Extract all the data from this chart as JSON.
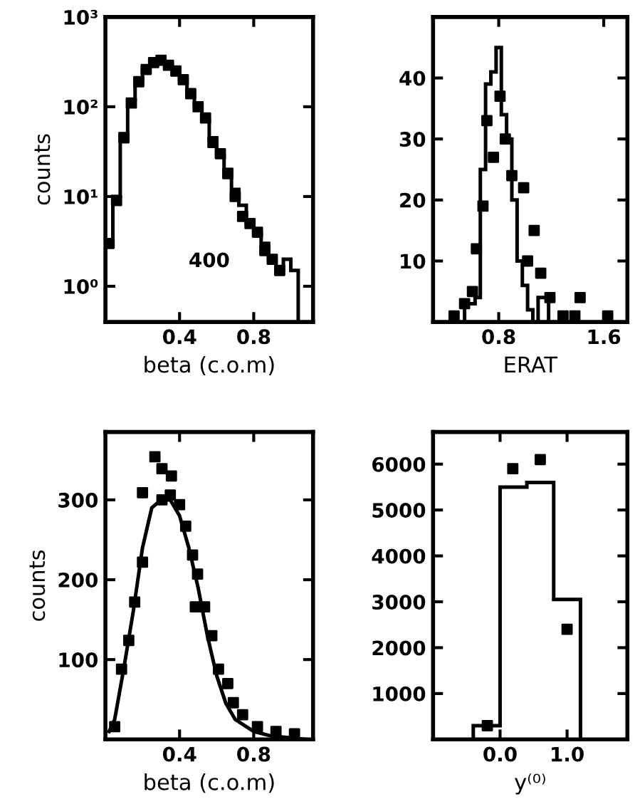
{
  "chart_data": [
    {
      "type": "histogram",
      "xlabel": "beta (c.o.m)",
      "ylabel": "counts",
      "log": "y",
      "xlim": [
        0,
        1.12
      ],
      "ylim": [
        0.4,
        1000
      ],
      "xticks": [
        0.4,
        0.8
      ],
      "yticks": [
        {
          "value": 1,
          "label": "10⁰"
        },
        {
          "value": 10,
          "label": "10¹"
        },
        {
          "value": 100,
          "label": "10²"
        },
        {
          "value": 1000,
          "label": "10³"
        }
      ],
      "annotations": [
        "400"
      ],
      "color": "#000000",
      "bins": [
        0,
        0.04,
        0.08,
        0.12,
        0.16,
        0.2,
        0.24,
        0.28,
        0.32,
        0.36,
        0.4,
        0.44,
        0.48,
        0.52,
        0.56,
        0.6,
        0.64,
        0.68,
        0.72,
        0.76,
        0.8,
        0.84,
        0.88,
        0.92,
        0.96,
        1.0,
        1.04
      ],
      "values": [
        3,
        10,
        50,
        120,
        200,
        270,
        320,
        320,
        300,
        260,
        200,
        150,
        110,
        70,
        45,
        28,
        20,
        12,
        8,
        5,
        4,
        3,
        2,
        1.5,
        2,
        1.5
      ],
      "series": [
        {
          "type": "scatter",
          "color": "#000000",
          "marker": "square",
          "x": [
            0.02,
            0.06,
            0.1,
            0.14,
            0.18,
            0.22,
            0.26,
            0.3,
            0.34,
            0.38,
            0.42,
            0.46,
            0.5,
            0.54,
            0.58,
            0.62,
            0.66,
            0.7,
            0.74,
            0.78,
            0.82,
            0.86,
            0.9,
            0.94
          ],
          "values": [
            3,
            9,
            45,
            110,
            190,
            260,
            310,
            330,
            290,
            250,
            200,
            140,
            100,
            75,
            40,
            30,
            18,
            10,
            6,
            5,
            4,
            2.5,
            2,
            1.5
          ]
        }
      ]
    },
    {
      "type": "histogram",
      "xlabel": "ERAT",
      "xlim": [
        0.3,
        1.78
      ],
      "ylim": [
        0,
        50
      ],
      "xticks": [
        0.8,
        1.6
      ],
      "yticks": [
        10,
        20,
        30,
        40
      ],
      "color": "#000000",
      "bins": [
        0.54,
        0.58,
        0.62,
        0.66,
        0.7,
        0.74,
        0.78,
        0.82,
        0.86,
        0.9,
        0.94,
        0.98,
        1.02,
        1.06,
        1.1,
        1.14,
        1.18,
        1.22
      ],
      "values": [
        3,
        3,
        4,
        25,
        39,
        41,
        45,
        34,
        30,
        20,
        10,
        6,
        2,
        0,
        4,
        4,
        0
      ],
      "series": [
        {
          "type": "scatter",
          "color": "#000000",
          "marker": "square",
          "x": [
            0.46,
            0.54,
            0.6,
            0.63,
            0.68,
            0.71,
            0.76,
            0.81,
            0.85,
            0.9,
            0.99,
            1.02,
            1.07,
            1.12,
            1.17,
            1.19,
            1.29,
            1.38,
            1.42,
            1.63
          ],
          "values": [
            1,
            3,
            5,
            12,
            19,
            33,
            27,
            37,
            30,
            24,
            22,
            10,
            15,
            8,
            null,
            4,
            1,
            1,
            4,
            1
          ]
        }
      ]
    },
    {
      "type": "line",
      "xlabel": "beta (c.o.m)",
      "ylabel": "counts",
      "xlim": [
        0,
        1.12
      ],
      "ylim": [
        0,
        385
      ],
      "xticks": [
        0.4,
        0.8
      ],
      "yticks": [
        100,
        200,
        300
      ],
      "series": [
        {
          "type": "line",
          "color": "#000000",
          "x": [
            0.02,
            0.05,
            0.1,
            0.15,
            0.2,
            0.25,
            0.3,
            0.35,
            0.4,
            0.45,
            0.5,
            0.55,
            0.6,
            0.65,
            0.7,
            0.8,
            0.9,
            1.0,
            1.08
          ],
          "values": [
            10,
            25,
            90,
            160,
            240,
            290,
            300,
            300,
            280,
            240,
            190,
            130,
            80,
            45,
            25,
            10,
            4,
            2,
            0
          ]
        },
        {
          "type": "scatter",
          "color": "#000000",
          "marker": "square",
          "x": [
            0.05,
            0.087,
            0.126,
            0.158,
            0.2,
            0.2,
            0.267,
            0.305,
            0.305,
            0.35,
            0.356,
            0.4,
            0.433,
            0.47,
            0.485,
            0.497,
            0.535,
            0.574,
            0.61,
            0.66,
            0.69,
            0.74,
            0.82,
            0.92,
            1.02
          ],
          "values": [
            16,
            88,
            124,
            172,
            222,
            309,
            354,
            339,
            300,
            306,
            330,
            294,
            267,
            231,
            166,
            207,
            166,
            130,
            88,
            70,
            46,
            31,
            16,
            10,
            7
          ]
        }
      ]
    },
    {
      "type": "histogram",
      "xlabel": "y⁽⁰⁾",
      "xlim": [
        -1.0,
        1.9
      ],
      "ylim": [
        0,
        6700
      ],
      "xticks": [
        {
          "value": 0,
          "label": "0.0"
        },
        {
          "value": 1,
          "label": "1.0"
        }
      ],
      "yticks": [
        1000,
        2000,
        3000,
        4000,
        5000,
        6000
      ],
      "color": "#000000",
      "bins": [
        -0.4,
        0,
        0.4,
        0.8,
        1.2
      ],
      "values": [
        300,
        5500,
        5600,
        3050
      ],
      "series": [
        {
          "type": "scatter",
          "color": "#000000",
          "marker": "square",
          "x": [
            -0.19,
            0.19,
            0.6,
            1.0
          ],
          "values": [
            300,
            5900,
            6100,
            2400
          ]
        }
      ]
    }
  ]
}
